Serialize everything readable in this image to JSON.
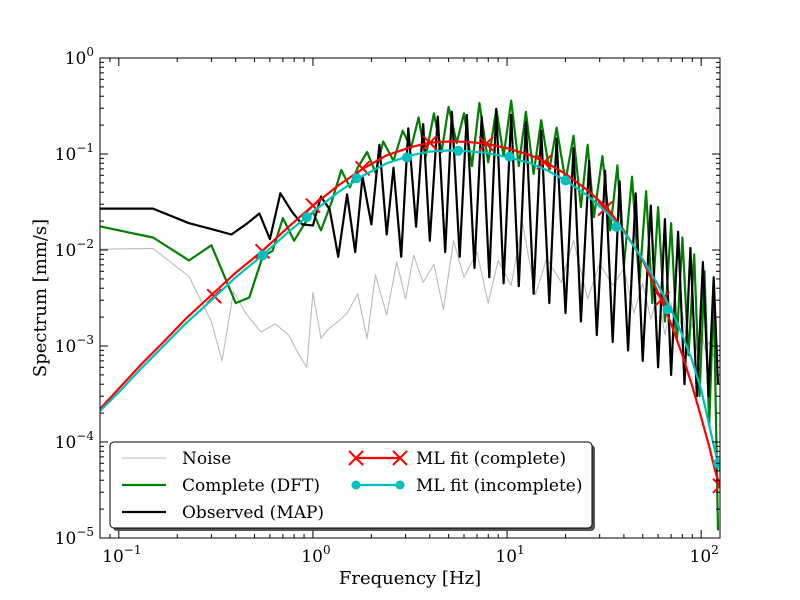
{
  "chart_data": {
    "type": "line",
    "xscale": "log",
    "yscale": "log",
    "xlabel": "Frequency [Hz]",
    "ylabel": "Spectrum [mm/s]",
    "xlim": [
      0.08,
      125
    ],
    "ylim": [
      1e-05,
      1
    ],
    "x_ticks": [
      0.1,
      1,
      10,
      100
    ],
    "y_ticks": [
      1e-05,
      0.0001,
      0.001,
      0.01,
      0.1,
      1
    ],
    "x_tick_labels": [
      {
        "base": "10",
        "exp": "−1"
      },
      {
        "base": "10",
        "exp": "0"
      },
      {
        "base": "10",
        "exp": "1"
      },
      {
        "base": "10",
        "exp": "2"
      }
    ],
    "y_tick_labels": [
      {
        "base": "10",
        "exp": "−5"
      },
      {
        "base": "10",
        "exp": "−4"
      },
      {
        "base": "10",
        "exp": "−3"
      },
      {
        "base": "10",
        "exp": "−2"
      },
      {
        "base": "10",
        "exp": "−1"
      },
      {
        "base": "10",
        "exp": "0"
      }
    ],
    "grid": false,
    "legend_position": "lower-center",
    "series": [
      {
        "name": "Noise",
        "color": "#bbbbbb",
        "style": "line",
        "x": [
          0.078,
          0.15,
          0.23,
          0.3,
          0.34,
          0.39,
          0.45,
          0.54,
          0.64,
          0.75,
          0.85,
          0.93,
          1.0,
          1.1,
          1.2,
          1.35,
          1.5,
          1.7,
          1.9,
          2.1,
          2.4,
          2.7,
          3.0,
          3.3,
          3.7,
          4.2,
          4.7,
          5.3,
          6.0,
          7.0,
          8.0,
          9.0,
          10.5,
          12,
          14,
          16,
          19,
          22,
          26,
          30,
          35,
          40,
          45,
          50,
          55,
          60,
          65,
          70,
          75,
          80,
          85,
          90,
          95,
          100,
          105,
          110,
          115,
          120
        ],
        "y": [
          0.0102,
          0.0104,
          0.0053,
          0.0018,
          0.0007,
          0.0037,
          0.0022,
          0.0014,
          0.0017,
          0.0013,
          0.0008,
          0.0006,
          0.0036,
          0.0012,
          0.0015,
          0.0018,
          0.0022,
          0.0035,
          0.0012,
          0.0055,
          0.0021,
          0.0075,
          0.0031,
          0.0088,
          0.0046,
          0.0071,
          0.0024,
          0.0125,
          0.0052,
          0.0095,
          0.0028,
          0.0078,
          0.0043,
          0.0195,
          0.0034,
          0.0082,
          0.0046,
          0.0125,
          0.0031,
          0.0072,
          0.0043,
          0.0064,
          0.0022,
          0.0045,
          0.0019,
          0.0036,
          0.0013,
          0.0028,
          0.0012,
          0.0022,
          0.0011,
          0.0017,
          0.0009,
          0.0014,
          0.0009,
          0.0011,
          0.0008,
          0.0007
        ]
      },
      {
        "name": "Complete (DFT)",
        "color": "#008000",
        "style": "line",
        "x": [
          0.078,
          0.15,
          0.23,
          0.3,
          0.4,
          0.47,
          0.55,
          0.62,
          0.7,
          0.8,
          0.9,
          1.0,
          1.1,
          1.25,
          1.4,
          1.55,
          1.7,
          1.9,
          2.1,
          2.3,
          2.6,
          2.9,
          3.2,
          3.5,
          3.8,
          4.2,
          4.6,
          5.0,
          5.5,
          6.0,
          6.6,
          7.2,
          8.0,
          8.8,
          9.6,
          10.5,
          11.5,
          12.5,
          13.7,
          15,
          16.5,
          18,
          20,
          22,
          24,
          26,
          28,
          31,
          34,
          37,
          40,
          44,
          48,
          52,
          56,
          60,
          65,
          70,
          75,
          80,
          86,
          92,
          98,
          104,
          110,
          116,
          122
        ],
        "y": [
          0.0178,
          0.0135,
          0.0078,
          0.0112,
          0.0028,
          0.0032,
          0.0085,
          0.0098,
          0.0215,
          0.0125,
          0.0185,
          0.025,
          0.016,
          0.032,
          0.068,
          0.045,
          0.072,
          0.105,
          0.064,
          0.135,
          0.085,
          0.175,
          0.115,
          0.24,
          0.092,
          0.265,
          0.105,
          0.31,
          0.13,
          0.265,
          0.075,
          0.34,
          0.082,
          0.295,
          0.095,
          0.36,
          0.075,
          0.275,
          0.062,
          0.225,
          0.068,
          0.188,
          0.052,
          0.155,
          0.028,
          0.125,
          0.022,
          0.095,
          0.016,
          0.076,
          0.0068,
          0.058,
          0.0045,
          0.041,
          0.0028,
          0.028,
          0.0018,
          0.019,
          0.0012,
          0.0135,
          0.0008,
          0.009,
          0.0003,
          0.006,
          0.00015,
          0.0035,
          1.2e-05
        ]
      },
      {
        "name": "Observed (MAP)",
        "color": "#000000",
        "style": "line",
        "x": [
          0.078,
          0.15,
          0.23,
          0.3,
          0.38,
          0.46,
          0.53,
          0.6,
          0.68,
          0.78,
          0.88,
          1.0,
          1.1,
          1.22,
          1.35,
          1.5,
          1.65,
          1.8,
          2.0,
          2.2,
          2.4,
          2.6,
          2.85,
          3.1,
          3.4,
          3.7,
          4.0,
          4.4,
          4.8,
          5.2,
          5.7,
          6.2,
          6.8,
          7.4,
          8.1,
          8.8,
          9.6,
          10.5,
          11.5,
          12.5,
          13.7,
          15,
          16.5,
          18,
          20,
          22,
          24,
          26.5,
          29,
          32,
          35,
          38,
          42,
          46,
          50,
          55,
          60,
          65,
          70,
          76,
          82,
          88,
          95,
          102,
          109,
          116,
          122
        ],
        "y": [
          0.027,
          0.027,
          0.019,
          0.0165,
          0.0145,
          0.019,
          0.024,
          0.013,
          0.039,
          0.025,
          0.0185,
          0.018,
          0.036,
          0.0265,
          0.0085,
          0.038,
          0.0095,
          0.058,
          0.0185,
          0.125,
          0.0145,
          0.072,
          0.0085,
          0.185,
          0.0175,
          0.205,
          0.0125,
          0.245,
          0.0095,
          0.275,
          0.0085,
          0.255,
          0.0065,
          0.245,
          0.0052,
          0.295,
          0.0045,
          0.255,
          0.0042,
          0.215,
          0.0035,
          0.175,
          0.0028,
          0.145,
          0.0022,
          0.115,
          0.0018,
          0.085,
          0.0013,
          0.067,
          0.0011,
          0.052,
          0.0009,
          0.039,
          0.0007,
          0.029,
          0.0006,
          0.021,
          0.0005,
          0.0155,
          0.0004,
          0.0105,
          0.0003,
          0.0075,
          0.0003,
          0.0052,
          0.0004
        ]
      },
      {
        "name": "ML fit (complete)",
        "color": "#ff0000",
        "style": "line-x-markers",
        "x": [
          0.078,
          0.1,
          0.13,
          0.17,
          0.22,
          0.3,
          0.4,
          0.55,
          0.75,
          1.0,
          1.35,
          1.8,
          2.4,
          3.2,
          4.0,
          5.0,
          6.2,
          7.8,
          10,
          13,
          16,
          20,
          26,
          33,
          40,
          50,
          60,
          70,
          80,
          90,
          100,
          110,
          118,
          125
        ],
        "y": [
          0.00021,
          0.00036,
          0.00064,
          0.0011,
          0.0019,
          0.0034,
          0.0058,
          0.0098,
          0.0175,
          0.029,
          0.047,
          0.07,
          0.097,
          0.118,
          0.131,
          0.135,
          0.134,
          0.128,
          0.115,
          0.098,
          0.081,
          0.062,
          0.042,
          0.027,
          0.016,
          0.0078,
          0.0036,
          0.0017,
          0.0008,
          0.00038,
          0.00018,
          9e-05,
          5e-05,
          3.5e-05
        ],
        "markers_x": [
          0.31,
          0.55,
          1.0,
          1.8,
          4.0,
          7.8,
          15.5,
          32,
          63,
          125
        ],
        "markers_y": [
          0.0033,
          0.0097,
          0.029,
          0.071,
          0.131,
          0.128,
          0.082,
          0.027,
          0.0031,
          3.5e-05
        ]
      },
      {
        "name": "ML fit (incomplete)",
        "color": "#00bfbf",
        "style": "line-dot-markers",
        "x": [
          0.078,
          0.1,
          0.13,
          0.17,
          0.22,
          0.3,
          0.4,
          0.55,
          0.75,
          1.0,
          1.35,
          1.8,
          2.4,
          3.2,
          4.0,
          5.0,
          6.2,
          7.8,
          10,
          13,
          16,
          20,
          26,
          33,
          40,
          50,
          60,
          70,
          80,
          90,
          100,
          110,
          118,
          125
        ],
        "y": [
          0.0002,
          0.00033,
          0.00058,
          0.001,
          0.0017,
          0.003,
          0.0052,
          0.0088,
          0.0155,
          0.025,
          0.04,
          0.059,
          0.08,
          0.097,
          0.106,
          0.109,
          0.107,
          0.103,
          0.093,
          0.081,
          0.068,
          0.053,
          0.037,
          0.024,
          0.0155,
          0.008,
          0.0043,
          0.0024,
          0.0013,
          0.0007,
          0.00035,
          0.00015,
          8e-05,
          5e-05
        ],
        "markers_x": [
          0.55,
          0.93,
          1.68,
          3.05,
          5.6,
          10.3,
          20,
          36.5,
          67,
          122
        ],
        "markers_y": [
          0.0088,
          0.022,
          0.056,
          0.092,
          0.108,
          0.094,
          0.053,
          0.0175,
          0.0024,
          6e-05
        ]
      }
    ]
  }
}
